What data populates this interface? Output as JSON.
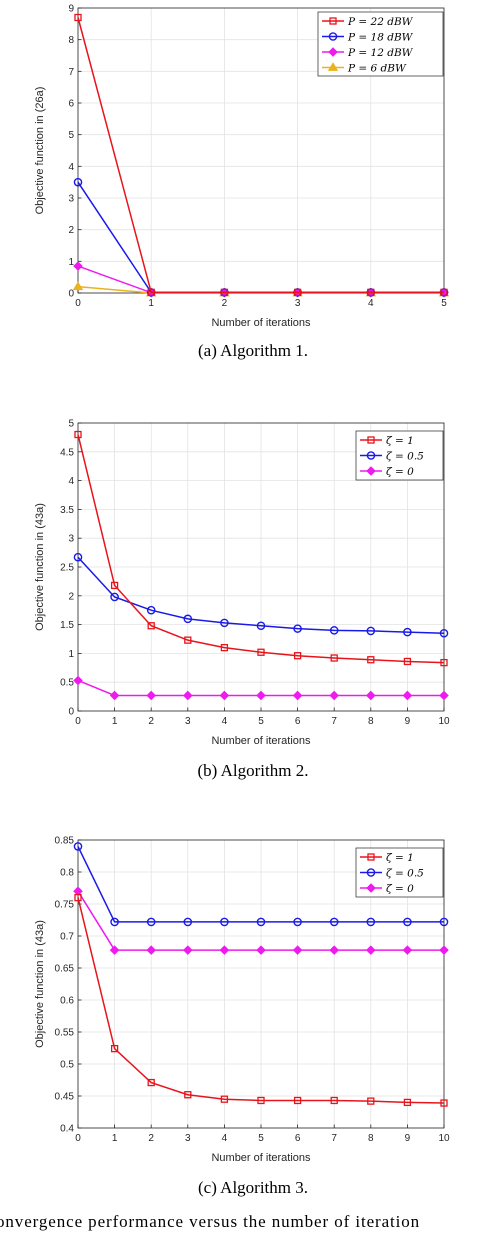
{
  "charts": [
    {
      "type": "line",
      "xlabel": "Number of iterations",
      "ylabel": "Objective function in (26a)",
      "xlim": [
        0,
        5
      ],
      "ylim": [
        0,
        9
      ],
      "xticks": [
        0,
        1,
        2,
        3,
        4,
        5
      ],
      "yticks": [
        0,
        1,
        2,
        3,
        4,
        5,
        6,
        7,
        8,
        9
      ],
      "grid": true,
      "legend_position": "top-right",
      "caption": "(a) Algorithm 1.",
      "series": [
        {
          "name": "P = 22 dBW",
          "color": "#e8141b",
          "marker": "square",
          "x": [
            0,
            1,
            2,
            3,
            4,
            5
          ],
          "y": [
            8.7,
            0.02,
            0.02,
            0.02,
            0.02,
            0.02
          ]
        },
        {
          "name": "P = 18 dBW",
          "color": "#1a1ae8",
          "marker": "circle",
          "x": [
            0,
            1,
            2,
            3,
            4,
            5
          ],
          "y": [
            3.5,
            0.02,
            0.02,
            0.02,
            0.02,
            0.02
          ]
        },
        {
          "name": "P = 12 dBW",
          "color": "#ee1aee",
          "marker": "diamond",
          "x": [
            0,
            1,
            2,
            3,
            4,
            5
          ],
          "y": [
            0.85,
            0.01,
            0.01,
            0.01,
            0.01,
            0.01
          ]
        },
        {
          "name": "P = 6 dBW",
          "color": "#edb120",
          "marker": "triangle",
          "x": [
            0,
            1,
            2,
            3,
            4,
            5
          ],
          "y": [
            0.2,
            0.0,
            0.0,
            0.0,
            0.0,
            0.0
          ]
        }
      ]
    },
    {
      "type": "line",
      "xlabel": "Number of iterations",
      "ylabel": "Objective function in (43a)",
      "xlim": [
        0,
        10
      ],
      "ylim": [
        0,
        5
      ],
      "xticks": [
        0,
        1,
        2,
        3,
        4,
        5,
        6,
        7,
        8,
        9,
        10
      ],
      "yticks": [
        0,
        0.5,
        1,
        1.5,
        2,
        2.5,
        3,
        3.5,
        4,
        4.5,
        5
      ],
      "grid": true,
      "legend_position": "top-right",
      "caption": "(b) Algorithm 2.",
      "series": [
        {
          "name": "ζ = 1",
          "color": "#e8141b",
          "marker": "square",
          "x": [
            0,
            1,
            2,
            3,
            4,
            5,
            6,
            7,
            8,
            9,
            10
          ],
          "y": [
            4.8,
            2.18,
            1.48,
            1.23,
            1.1,
            1.02,
            0.96,
            0.92,
            0.89,
            0.86,
            0.84
          ]
        },
        {
          "name": "ζ = 0.5",
          "color": "#1a1ae8",
          "marker": "circle",
          "x": [
            0,
            1,
            2,
            3,
            4,
            5,
            6,
            7,
            8,
            9,
            10
          ],
          "y": [
            2.67,
            1.98,
            1.75,
            1.6,
            1.53,
            1.48,
            1.43,
            1.4,
            1.39,
            1.37,
            1.35
          ]
        },
        {
          "name": "ζ = 0",
          "color": "#ee1aee",
          "marker": "diamond",
          "x": [
            0,
            1,
            2,
            3,
            4,
            5,
            6,
            7,
            8,
            9,
            10
          ],
          "y": [
            0.53,
            0.27,
            0.27,
            0.27,
            0.27,
            0.27,
            0.27,
            0.27,
            0.27,
            0.27,
            0.27
          ]
        }
      ]
    },
    {
      "type": "line",
      "xlabel": "Number of iterations",
      "ylabel": "Objective function in (43a)",
      "xlim": [
        0,
        10
      ],
      "ylim": [
        0.4,
        0.85
      ],
      "xticks": [
        0,
        1,
        2,
        3,
        4,
        5,
        6,
        7,
        8,
        9,
        10
      ],
      "yticks": [
        0.4,
        0.45,
        0.5,
        0.55,
        0.6,
        0.65,
        0.7,
        0.75,
        0.8,
        0.85
      ],
      "grid": true,
      "legend_position": "top-right",
      "caption": "(c) Algorithm 3.",
      "series": [
        {
          "name": "ζ = 1",
          "color": "#e8141b",
          "marker": "square",
          "x": [
            0,
            1,
            2,
            3,
            4,
            5,
            6,
            7,
            8,
            9,
            10
          ],
          "y": [
            0.76,
            0.524,
            0.471,
            0.452,
            0.445,
            0.443,
            0.443,
            0.443,
            0.442,
            0.44,
            0.439
          ]
        },
        {
          "name": "ζ = 0.5",
          "color": "#1a1ae8",
          "marker": "circle",
          "x": [
            0,
            1,
            2,
            3,
            4,
            5,
            6,
            7,
            8,
            9,
            10
          ],
          "y": [
            0.84,
            0.722,
            0.722,
            0.722,
            0.722,
            0.722,
            0.722,
            0.722,
            0.722,
            0.722,
            0.722
          ]
        },
        {
          "name": "ζ = 0",
          "color": "#ee1aee",
          "marker": "diamond",
          "x": [
            0,
            1,
            2,
            3,
            4,
            5,
            6,
            7,
            8,
            9,
            10
          ],
          "y": [
            0.77,
            0.678,
            0.678,
            0.678,
            0.678,
            0.678,
            0.678,
            0.678,
            0.678,
            0.678,
            0.678
          ]
        }
      ]
    }
  ],
  "footer_text": "onvergence performance versus the number of iteration"
}
